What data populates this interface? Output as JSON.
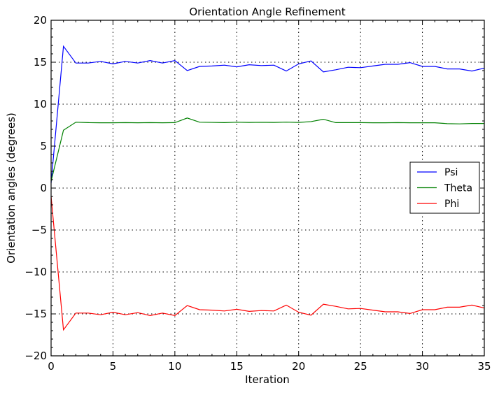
{
  "chart_data": {
    "type": "line",
    "title": "Orientation Angle Refinement",
    "xlabel": "Iteration",
    "ylabel": "Orientation angles (degrees)",
    "xlim": [
      0,
      35
    ],
    "ylim": [
      -20,
      20
    ],
    "xticks": [
      0,
      5,
      10,
      15,
      20,
      25,
      30,
      35
    ],
    "yticks": [
      -20,
      -15,
      -10,
      -5,
      0,
      5,
      10,
      15,
      20
    ],
    "ytick_labels": [
      "−20",
      "−15",
      "−10",
      "−5",
      "0",
      "5",
      "10",
      "15",
      "20"
    ],
    "grid": true,
    "legend_position": "center-right",
    "x": [
      0,
      1,
      2,
      3,
      4,
      5,
      6,
      7,
      8,
      9,
      10,
      11,
      12,
      13,
      14,
      15,
      16,
      17,
      18,
      19,
      20,
      21,
      22,
      23,
      24,
      25,
      26,
      27,
      28,
      29,
      30,
      31,
      32,
      33,
      34,
      35
    ],
    "series": [
      {
        "name": "Psi",
        "color": "#0000ff",
        "values": [
          0.6,
          16.9,
          14.9,
          14.9,
          15.1,
          14.8,
          15.1,
          14.9,
          15.2,
          14.9,
          15.2,
          14.0,
          14.5,
          14.55,
          14.65,
          14.45,
          14.7,
          14.6,
          14.65,
          13.95,
          14.8,
          15.15,
          13.85,
          14.1,
          14.4,
          14.35,
          14.55,
          14.75,
          14.75,
          14.95,
          14.5,
          14.5,
          14.2,
          14.2,
          13.95,
          14.3
        ]
      },
      {
        "name": "Theta",
        "color": "#008000",
        "values": [
          0.8,
          6.9,
          7.85,
          7.8,
          7.78,
          7.78,
          7.8,
          7.78,
          7.8,
          7.78,
          7.8,
          8.35,
          7.85,
          7.83,
          7.8,
          7.85,
          7.82,
          7.84,
          7.82,
          7.86,
          7.82,
          7.92,
          8.2,
          7.8,
          7.8,
          7.8,
          7.78,
          7.78,
          7.8,
          7.78,
          7.78,
          7.78,
          7.68,
          7.65,
          7.7,
          7.7
        ]
      },
      {
        "name": "Phi",
        "color": "#ff0000",
        "values": [
          -1.0,
          -16.9,
          -14.9,
          -14.9,
          -15.1,
          -14.8,
          -15.1,
          -14.85,
          -15.2,
          -14.9,
          -15.2,
          -14.0,
          -14.5,
          -14.55,
          -14.65,
          -14.45,
          -14.7,
          -14.6,
          -14.65,
          -13.95,
          -14.8,
          -15.15,
          -13.85,
          -14.1,
          -14.4,
          -14.35,
          -14.55,
          -14.75,
          -14.75,
          -14.95,
          -14.5,
          -14.5,
          -14.2,
          -14.2,
          -13.95,
          -14.3
        ]
      }
    ]
  }
}
